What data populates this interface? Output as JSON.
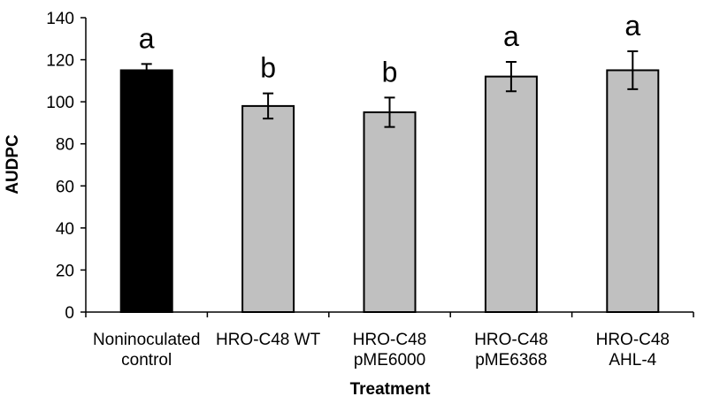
{
  "chart_data": {
    "type": "bar",
    "xlabel": "Treatment",
    "ylabel": "AUDPC",
    "ylim": [
      0,
      140
    ],
    "yticks": [
      0,
      20,
      40,
      60,
      80,
      100,
      120,
      140
    ],
    "categories": [
      [
        "Noninoculated",
        "control"
      ],
      [
        "HRO-C48 WT"
      ],
      [
        "HRO-C48",
        "pME6000"
      ],
      [
        "HRO-C48",
        "pME6368"
      ],
      [
        "HRO-C48",
        "AHL-4"
      ]
    ],
    "values": [
      115,
      98,
      95,
      112,
      115
    ],
    "errors": [
      3,
      6,
      7,
      7,
      9
    ],
    "significance_letters": [
      "a",
      "b",
      "b",
      "a",
      "a"
    ],
    "bar_colors": [
      "#000000",
      "#c0c0c0",
      "#c0c0c0",
      "#c0c0c0",
      "#c0c0c0"
    ]
  }
}
